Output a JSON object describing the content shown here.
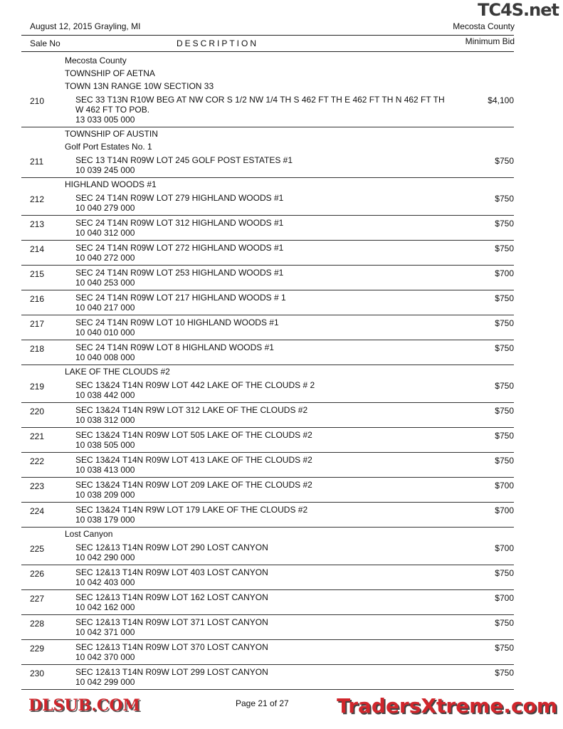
{
  "header": {
    "date_location": "August 12, 2015  Grayling, MI",
    "county": "Mecosta County"
  },
  "columns": {
    "sale_no": "Sale No",
    "description": "DESCRIPTION",
    "min_bid": "Minimum Bid"
  },
  "sections": [
    {
      "headings": [
        "Mecosta County",
        "TOWNSHIP OF AETNA",
        "TOWN 13N RANGE 10W SECTION 33"
      ],
      "records": [
        {
          "no": "210",
          "desc": "SEC 33 T13N R10W BEG AT NW COR S 1/2 NW 1/4 TH S 462 FT TH E 462 FT TH N 462 FT TH W 462 FT TO POB.",
          "parcel": "13 033 005 000",
          "bid": "$4,100"
        }
      ]
    },
    {
      "headings": [
        "TOWNSHIP OF AUSTIN",
        "Golf Port Estates No. 1"
      ],
      "records": [
        {
          "no": "211",
          "desc": "SEC 13 T14N R09W LOT 245 GOLF POST ESTATES #1",
          "parcel": "10 039 245 000",
          "bid": "$750"
        }
      ]
    },
    {
      "headings": [
        "HIGHLAND WOODS #1"
      ],
      "records": [
        {
          "no": "212",
          "desc": "SEC 24 T14N R09W LOT 279 HIGHLAND WOODS #1",
          "parcel": "10 040 279 000",
          "bid": "$750"
        },
        {
          "no": "213",
          "desc": "SEC 24 T14N R09W LOT 312 HIGHLAND WOODS #1",
          "parcel": "10 040 312 000",
          "bid": "$750"
        },
        {
          "no": "214",
          "desc": "SEC 24 T14N R09W LOT 272 HIGHLAND WOODS #1",
          "parcel": "10 040 272 000",
          "bid": "$750"
        },
        {
          "no": "215",
          "desc": "SEC 24 T14N R09W LOT 253 HIGHLAND WOODS #1",
          "parcel": "10 040 253 000",
          "bid": "$700"
        },
        {
          "no": "216",
          "desc": "SEC 24 T14N R09W LOT 217 HIGHLAND WOODS # 1",
          "parcel": "10 040 217 000",
          "bid": "$750"
        },
        {
          "no": "217",
          "desc": "SEC 24 T14N R09W LOT 10 HIGHLAND WOODS #1",
          "parcel": "10 040 010 000",
          "bid": "$750"
        },
        {
          "no": "218",
          "desc": "SEC 24 T14N R09W LOT 8 HIGHLAND WOODS #1",
          "parcel": "10 040 008 000",
          "bid": "$750"
        }
      ]
    },
    {
      "headings": [
        "LAKE OF THE CLOUDS #2"
      ],
      "records": [
        {
          "no": "219",
          "desc": "SEC 13&24 T14N R09W LOT 442 LAKE OF THE CLOUDS # 2",
          "parcel": "10 038 442 000",
          "bid": "$750"
        },
        {
          "no": "220",
          "desc": "SEC 13&24 T14N R9W LOT 312 LAKE OF THE CLOUDS #2",
          "parcel": "10 038 312 000",
          "bid": "$750"
        },
        {
          "no": "221",
          "desc": "SEC 13&24 T14N R09W LOT 505 LAKE OF THE CLOUDS #2",
          "parcel": "10 038 505 000",
          "bid": "$750"
        },
        {
          "no": "222",
          "desc": "SEC 13&24 T14N R09W LOT 413 LAKE OF THE CLOUDS #2",
          "parcel": "10 038 413 000",
          "bid": "$750"
        },
        {
          "no": "223",
          "desc": "SEC 13&24 T14N R09W LOT 209 LAKE OF THE CLOUDS #2",
          "parcel": "10 038 209 000",
          "bid": "$700"
        },
        {
          "no": "224",
          "desc": "SEC 13&24 T14N R9W LOT 179 LAKE OF THE CLOUDS #2",
          "parcel": "10 038 179 000",
          "bid": "$700"
        }
      ]
    },
    {
      "headings": [
        "Lost Canyon"
      ],
      "records": [
        {
          "no": "225",
          "desc": "SEC 12&13 T14N R09W LOT 290 LOST CANYON",
          "parcel": "10 042 290 000",
          "bid": "$700"
        },
        {
          "no": "226",
          "desc": "SEC 12&13 T14N R09W LOT 403 LOST CANYON",
          "parcel": "10 042 403 000",
          "bid": "$750"
        },
        {
          "no": "227",
          "desc": "SEC 12&13 T14N R09W LOT 162 LOST CANYON",
          "parcel": "10 042 162 000",
          "bid": "$700"
        },
        {
          "no": "228",
          "desc": "SEC 12&13 T14N R09W LOT 371 LOST CANYON",
          "parcel": "10 042 371 000",
          "bid": "$750"
        },
        {
          "no": "229",
          "desc": "SEC 12&13 T14N R09W LOT 370 LOST CANYON",
          "parcel": "10 042 370 000",
          "bid": "$750"
        },
        {
          "no": "230",
          "desc": "SEC 12&13 T14N R09W LOT 299 LOST CANYON",
          "parcel": "10 042 299 000",
          "bid": "$750"
        }
      ]
    }
  ],
  "footer": {
    "page": "Page 21 of 27"
  },
  "watermarks": {
    "top": "TC4S.net",
    "middle": "DLSUB.COM",
    "bottom": "TradersXtreme.com"
  }
}
